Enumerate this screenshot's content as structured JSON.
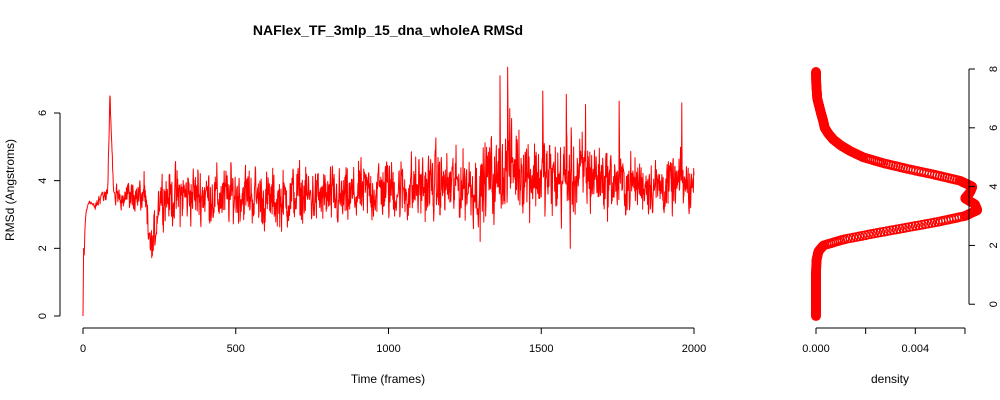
{
  "chart_data": [
    {
      "type": "line",
      "title": "NAFlex_TF_3mlp_15_dna_wholeA RMSd",
      "xlabel": "Time (frames)",
      "ylabel": "RMSd (Angstroms)",
      "xlim": [
        0,
        2000
      ],
      "ylim": [
        0,
        7.3
      ],
      "xticks": [
        0,
        500,
        1000,
        1500,
        2000
      ],
      "yticks": [
        0,
        2,
        4,
        6
      ],
      "grid": false,
      "series": [
        {
          "color": "#ff0000",
          "points": [
            [
              0,
              0
            ],
            [
              3,
              1.2
            ],
            [
              6,
              2.7
            ],
            [
              10,
              3.1
            ],
            [
              20,
              3.4
            ],
            [
              40,
              3.2
            ],
            [
              60,
              3.6
            ],
            [
              80,
              3.5
            ],
            [
              88,
              6.6
            ],
            [
              100,
              3.5
            ],
            [
              150,
              3.6
            ],
            [
              200,
              3.5
            ],
            [
              225,
              1.75
            ],
            [
              250,
              3.6
            ],
            [
              300,
              3.5
            ],
            [
              350,
              3.6
            ],
            [
              400,
              3.6
            ],
            [
              450,
              3.5
            ],
            [
              500,
              3.6
            ],
            [
              550,
              3.6
            ],
            [
              600,
              3.4
            ],
            [
              650,
              3.4
            ],
            [
              700,
              3.6
            ],
            [
              750,
              3.5
            ],
            [
              800,
              3.5
            ],
            [
              850,
              3.4
            ],
            [
              900,
              3.6
            ],
            [
              950,
              3.7
            ],
            [
              1000,
              3.8
            ],
            [
              1050,
              3.7
            ],
            [
              1100,
              3.8
            ],
            [
              1150,
              3.9
            ],
            [
              1200,
              3.8
            ],
            [
              1250,
              3.9
            ],
            [
              1300,
              3.8
            ],
            [
              1330,
              4.2
            ],
            [
              1350,
              3.9
            ],
            [
              1380,
              4.3
            ],
            [
              1400,
              4.5
            ],
            [
              1450,
              4.3
            ],
            [
              1500,
              4.1
            ],
            [
              1550,
              4.0
            ],
            [
              1600,
              4.1
            ],
            [
              1650,
              4.2
            ],
            [
              1700,
              4.1
            ],
            [
              1750,
              3.9
            ],
            [
              1800,
              3.9
            ],
            [
              1850,
              3.9
            ],
            [
              1900,
              3.8
            ],
            [
              1950,
              3.9
            ],
            [
              2000,
              3.8
            ]
          ],
          "spread": [
            [
              0,
              0
            ],
            [
              300,
              0.8
            ],
            [
              900,
              0.8
            ],
            [
              1000,
              0.9
            ],
            [
              1300,
              1.0
            ],
            [
              1400,
              1.2
            ],
            [
              1650,
              1.1
            ],
            [
              1750,
              0.8
            ],
            [
              2000,
              0.75
            ]
          ],
          "spikes": [
            [
              1390,
              7.35
            ],
            [
              1365,
              7.1
            ],
            [
              1505,
              6.65
            ],
            [
              1582,
              6.55
            ],
            [
              1645,
              6.25
            ],
            [
              1755,
              6.35
            ],
            [
              1960,
              6.3
            ],
            [
              1595,
              2.0
            ],
            [
              1300,
              2.2
            ]
          ]
        }
      ]
    },
    {
      "type": "line",
      "orientation": "horizontal",
      "xlabel": "density",
      "xlim": [
        0,
        0.0058
      ],
      "ylim": [
        -0.4,
        8
      ],
      "xticks": [
        0.0,
        0.002,
        0.004
      ],
      "xticklabels": [
        "0.000",
        "0.004"
      ],
      "xticklabel_at": [
        0.0,
        0.004
      ],
      "yticks": [
        0,
        2,
        4,
        6,
        8
      ],
      "y_axis_side": "right",
      "grid": false,
      "series": [
        {
          "color": "#ff0000",
          "marker": "circle",
          "y_values": [
            -0.4,
            0,
            0.5,
            1,
            1.5,
            1.8,
            2.0,
            2.2,
            2.4,
            2.6,
            2.8,
            3.0,
            3.2,
            3.4,
            3.6,
            3.8,
            4.0,
            4.2,
            4.4,
            4.6,
            4.8,
            5.0,
            5.2,
            5.4,
            5.6,
            5.8,
            6.0,
            6.2,
            6.5,
            7.0,
            7.5,
            7.9
          ],
          "density": [
            0.0,
            0.0,
            0.0,
            0.0,
            2e-05,
            0.0001,
            0.0003,
            0.0011,
            0.0023,
            0.0036,
            0.0049,
            0.006,
            0.0065,
            0.0064,
            0.006,
            0.0062,
            0.0063,
            0.0058,
            0.0048,
            0.0037,
            0.0027,
            0.0019,
            0.0014,
            0.001,
            0.0007,
            0.0005,
            0.00035,
            0.0003,
            0.0002,
            5e-05,
            1e-05,
            0.0
          ]
        }
      ]
    }
  ]
}
